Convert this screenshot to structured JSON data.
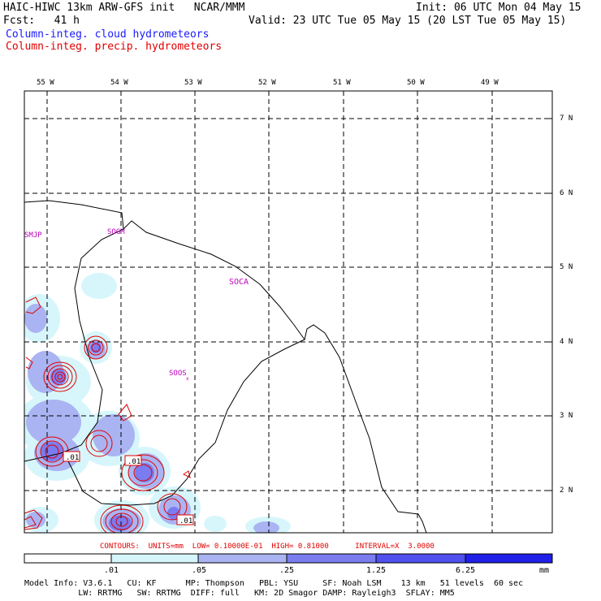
{
  "header": {
    "line1_left": "HAIC-HIWC 13km ARW-GFS init   NCAR/MMM",
    "line1_right": "Init: 06 UTC Mon 04 May 15",
    "line2_left": "Fcst:   41 h",
    "line2_right": "Valid: 23 UTC Tue 05 May 15 (20 LST Tue 05 May 15)",
    "legend_cloud": "Column-integ. cloud hydrometeors",
    "legend_precip": "Column-integ. precip. hydrometeors"
  },
  "lon_labels": [
    "55 W",
    "54 W",
    "53 W",
    "52 W",
    "51 W",
    "50 W",
    "49 W"
  ],
  "lat_labels": [
    "7 N",
    "6 N",
    "5 N",
    "4 N",
    "3 N",
    "2 N"
  ],
  "stations": [
    "SMJP",
    "SOGM",
    "SOCA",
    "SOOS"
  ],
  "contour_labels": [
    ".01",
    ".01",
    ".01"
  ],
  "contour_info": "CONTOURS:  UNITS=mm  LOW= 0.10000E-01  HIGH= 0.81000      INTERVAL=X  3.0000",
  "colorbar": {
    "ticks": [
      ".01",
      ".05",
      ".25",
      "1.25",
      "6.25"
    ],
    "unit": "mm",
    "colors": [
      "#ffffff",
      "#d6f6fc",
      "#aab4f2",
      "#7a7cf0",
      "#5050ee",
      "#2020e8"
    ]
  },
  "model_info": {
    "line1": "Model Info: V3.6.1   CU: KF      MP: Thompson   PBL: YSU     SF: Noah LSM    13 km   51 levels  60 sec",
    "line2": "           LW: RRTMG   SW: RRTMG  DIFF: full   KM: 2D Smagor DAMP: Rayleigh3  SFLAY: MM5"
  },
  "colors": {
    "cloud": "#1a1aff",
    "precip": "#e00000",
    "station": "#c000c0",
    "fill_light": "#d6f6fc",
    "fill_mid": "#aab4f2",
    "fill_dark": "#7a7cf0"
  }
}
